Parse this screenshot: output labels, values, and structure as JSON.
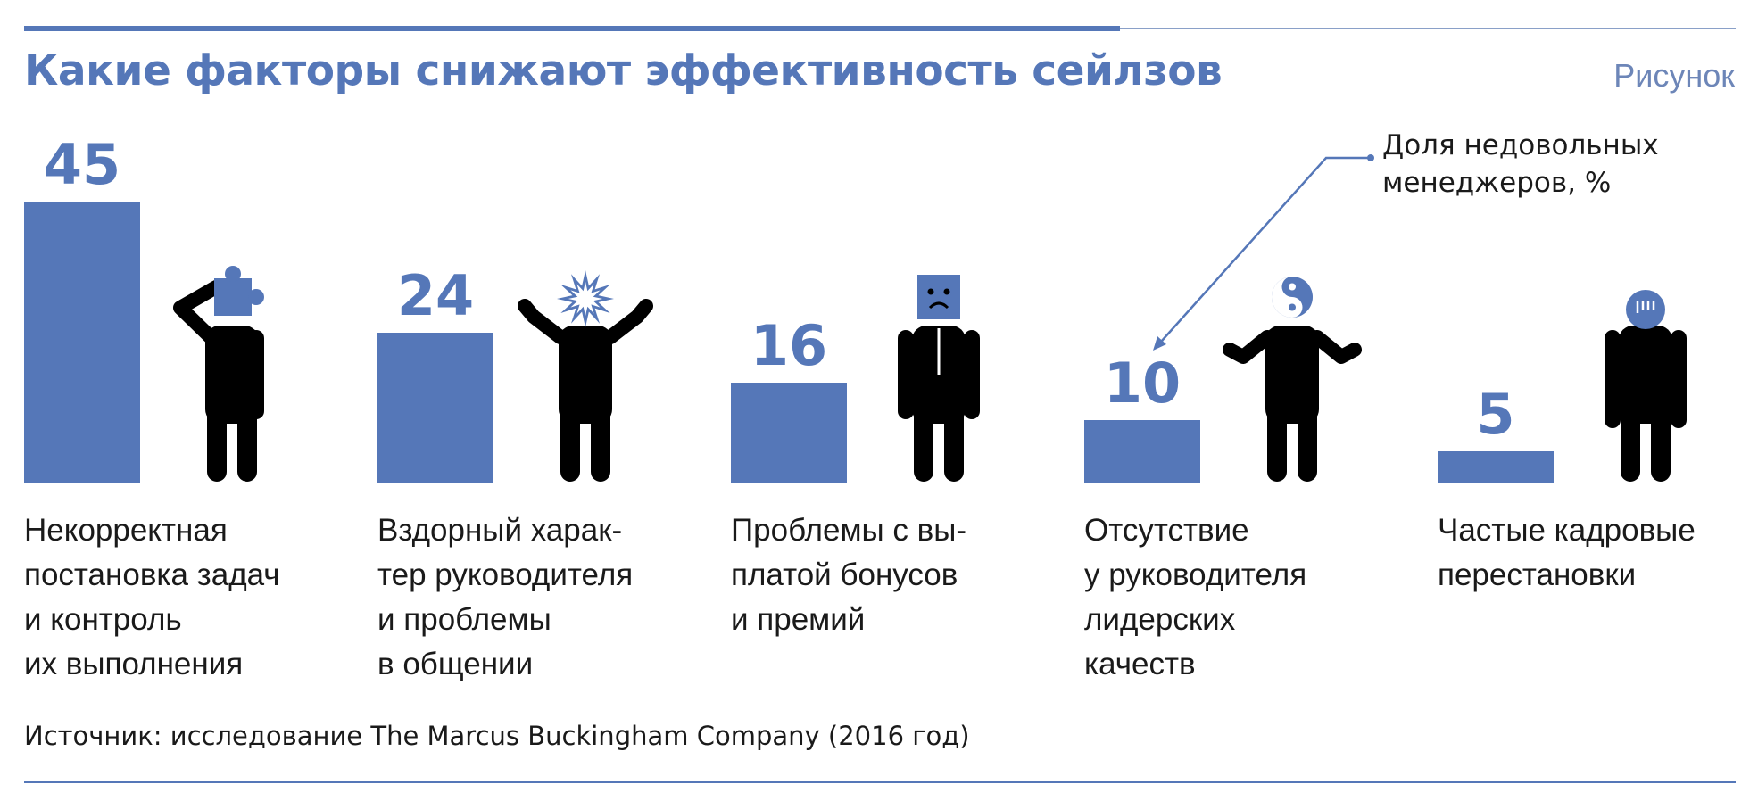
{
  "header": {
    "title": "Какие факторы снижают эффективность сейлзов",
    "figure_label": "Рисунок"
  },
  "legend_note": "Доля недовольных\nменеджеров, %",
  "source": "Источник: исследование The Marcus Buckingham Company (2016 год)",
  "colors": {
    "accent": "#5577b8",
    "figure": "#000000"
  },
  "icons": [
    "puzzle-head-figure-icon",
    "exploding-head-figure-icon",
    "sad-box-head-figure-icon",
    "yin-yang-head-figure-icon",
    "bars-head-figure-icon"
  ],
  "chart_data": {
    "type": "bar",
    "categories": [
      "Некорректная\nпостановка задач\nи контроль\nих выполнения",
      "Вздорный харак-\nтер руководителя\nи проблемы\nв общении",
      "Проблемы с вы-\nплатой бонусов\nи премий",
      "Отсутствие\nу руководителя\nлидерских\nкачеств",
      "Частые кадровые\nперестановки"
    ],
    "values": [
      45,
      24,
      16,
      10,
      5
    ],
    "value_labels": [
      "45",
      "24",
      "16",
      "10",
      "5"
    ],
    "unit": "%",
    "ylim": [
      0,
      45
    ],
    "grid": false
  }
}
